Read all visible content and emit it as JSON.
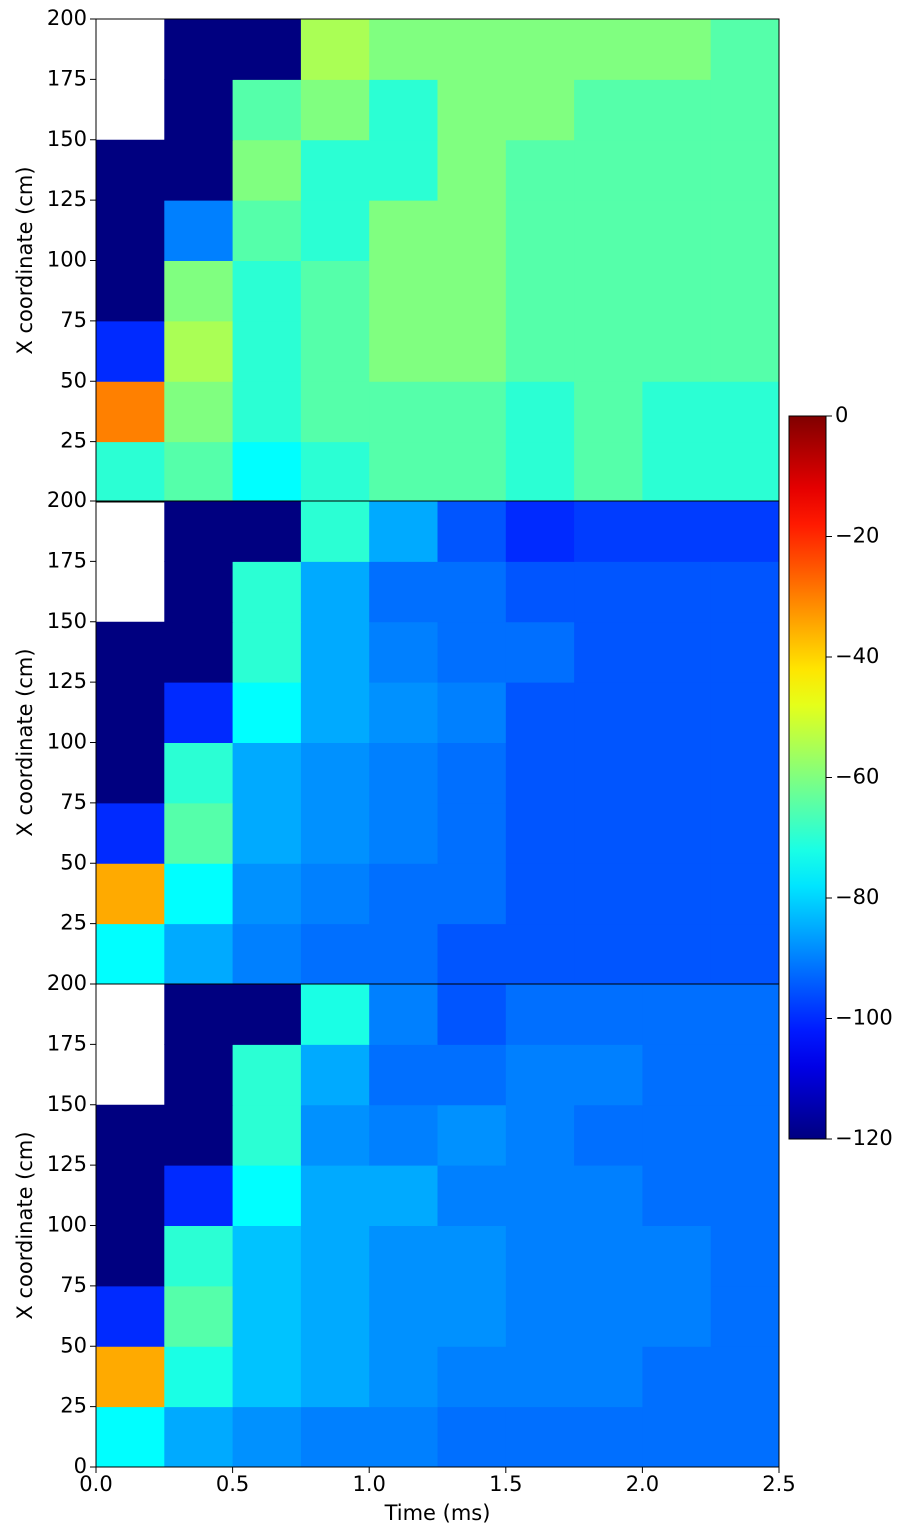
{
  "chart_data": [
    {
      "type": "heatmap",
      "ylabel": "X coordinate (cm)",
      "colormap": "jet",
      "zlim": [
        -120,
        0
      ],
      "xlim": [
        0,
        2.5
      ],
      "ylim": [
        0,
        200
      ],
      "yticks": [
        25,
        50,
        75,
        100,
        125,
        150,
        175,
        200
      ],
      "xbins": [
        0,
        0.25,
        0.5,
        0.75,
        1,
        1.25,
        1.5,
        1.75,
        2,
        2.25,
        2.5
      ],
      "ybins": [
        0,
        25,
        50,
        75,
        100,
        125,
        150,
        175,
        200
      ],
      "values": [
        [
          -70,
          -65,
          -75,
          -70,
          -65,
          -65,
          -70,
          -65,
          -70,
          -70
        ],
        [
          -30,
          -60,
          -70,
          -65,
          -65,
          -65,
          -70,
          -65,
          -70,
          -70
        ],
        [
          -100,
          -55,
          -70,
          -65,
          -60,
          -60,
          -65,
          -65,
          -65,
          -65
        ],
        [
          -120,
          -60,
          -70,
          -65,
          -60,
          -60,
          -65,
          -65,
          -65,
          -65
        ],
        [
          -120,
          -90,
          -65,
          -70,
          -60,
          -60,
          -65,
          -65,
          -65,
          -65
        ],
        [
          -120,
          -120,
          -60,
          -70,
          -70,
          -60,
          -65,
          -65,
          -65,
          -65
        ],
        [
          null,
          -120,
          -65,
          -60,
          -70,
          -60,
          -60,
          -65,
          -65,
          -65
        ],
        [
          null,
          -120,
          -120,
          -55,
          -60,
          -60,
          -60,
          -60,
          -60,
          -65
        ]
      ]
    },
    {
      "type": "heatmap",
      "ylabel": "X coordinate (cm)",
      "colormap": "jet",
      "zlim": [
        -120,
        0
      ],
      "xlim": [
        0,
        2.5
      ],
      "ylim": [
        0,
        200
      ],
      "yticks": [
        25,
        50,
        75,
        100,
        125,
        150,
        175,
        200
      ],
      "xbins": [
        0,
        0.25,
        0.5,
        0.75,
        1,
        1.25,
        1.5,
        1.75,
        2,
        2.25,
        2.5
      ],
      "ybins": [
        0,
        25,
        50,
        75,
        100,
        125,
        150,
        175,
        200
      ],
      "values": [
        [
          -75,
          -85,
          -90,
          -92,
          -92,
          -95,
          -95,
          -95,
          -95,
          -95
        ],
        [
          -35,
          -75,
          -88,
          -90,
          -92,
          -92,
          -95,
          -95,
          -95,
          -95
        ],
        [
          -100,
          -65,
          -85,
          -88,
          -90,
          -92,
          -95,
          -95,
          -95,
          -95
        ],
        [
          -120,
          -70,
          -85,
          -88,
          -90,
          -92,
          -95,
          -95,
          -95,
          -95
        ],
        [
          -120,
          -100,
          -75,
          -85,
          -88,
          -90,
          -95,
          -95,
          -95,
          -95
        ],
        [
          -120,
          -120,
          -70,
          -85,
          -90,
          -92,
          -92,
          -95,
          -95,
          -95
        ],
        [
          null,
          -120,
          -70,
          -85,
          -92,
          -92,
          -95,
          -95,
          -95,
          -95
        ],
        [
          null,
          -120,
          -120,
          -70,
          -85,
          -95,
          -100,
          -98,
          -98,
          -98
        ]
      ]
    },
    {
      "type": "heatmap",
      "ylabel": "X coordinate (cm)",
      "xlabel": "Time (ms)",
      "colormap": "jet",
      "zlim": [
        -120,
        0
      ],
      "xlim": [
        0,
        2.5
      ],
      "ylim": [
        0,
        200
      ],
      "yticks": [
        0,
        25,
        50,
        75,
        100,
        125,
        150,
        175,
        200
      ],
      "xticks": [
        {
          "value": 0,
          "label": "0.0"
        },
        0.5,
        {
          "value": 1,
          "label": "1.0"
        },
        1.5,
        {
          "value": 2,
          "label": "2.0"
        },
        2.5
      ],
      "xbins": [
        0,
        0.25,
        0.5,
        0.75,
        1,
        1.25,
        1.5,
        1.75,
        2,
        2.25,
        2.5
      ],
      "ybins": [
        0,
        25,
        50,
        75,
        100,
        125,
        150,
        175,
        200
      ],
      "values": [
        [
          -75,
          -85,
          -88,
          -90,
          -90,
          -92,
          -92,
          -92,
          -92,
          -92
        ],
        [
          -35,
          -72,
          -82,
          -85,
          -88,
          -90,
          -90,
          -90,
          -92,
          -92
        ],
        [
          -100,
          -65,
          -82,
          -85,
          -88,
          -88,
          -90,
          -90,
          -90,
          -92
        ],
        [
          -120,
          -70,
          -82,
          -85,
          -88,
          -88,
          -90,
          -90,
          -90,
          -92
        ],
        [
          -120,
          -100,
          -75,
          -85,
          -85,
          -90,
          -90,
          -90,
          -92,
          -92
        ],
        [
          -120,
          -120,
          -70,
          -88,
          -90,
          -88,
          -90,
          -92,
          -92,
          -92
        ],
        [
          null,
          -120,
          -70,
          -85,
          -92,
          -92,
          -90,
          -90,
          -92,
          -92
        ],
        [
          null,
          -120,
          -120,
          -72,
          -90,
          -95,
          -92,
          -92,
          -92,
          -92
        ]
      ]
    },
    {
      "type": "colorbar",
      "colormap": "jet",
      "zlim": [
        -120,
        0
      ],
      "zticks": [
        0,
        {
          "value": -20,
          "label": "−20"
        },
        {
          "value": -40,
          "label": "−40"
        },
        {
          "value": -60,
          "label": "−60"
        },
        {
          "value": -80,
          "label": "−80"
        },
        {
          "value": -100,
          "label": "−100"
        },
        {
          "value": -120,
          "label": "−120"
        }
      ]
    }
  ]
}
